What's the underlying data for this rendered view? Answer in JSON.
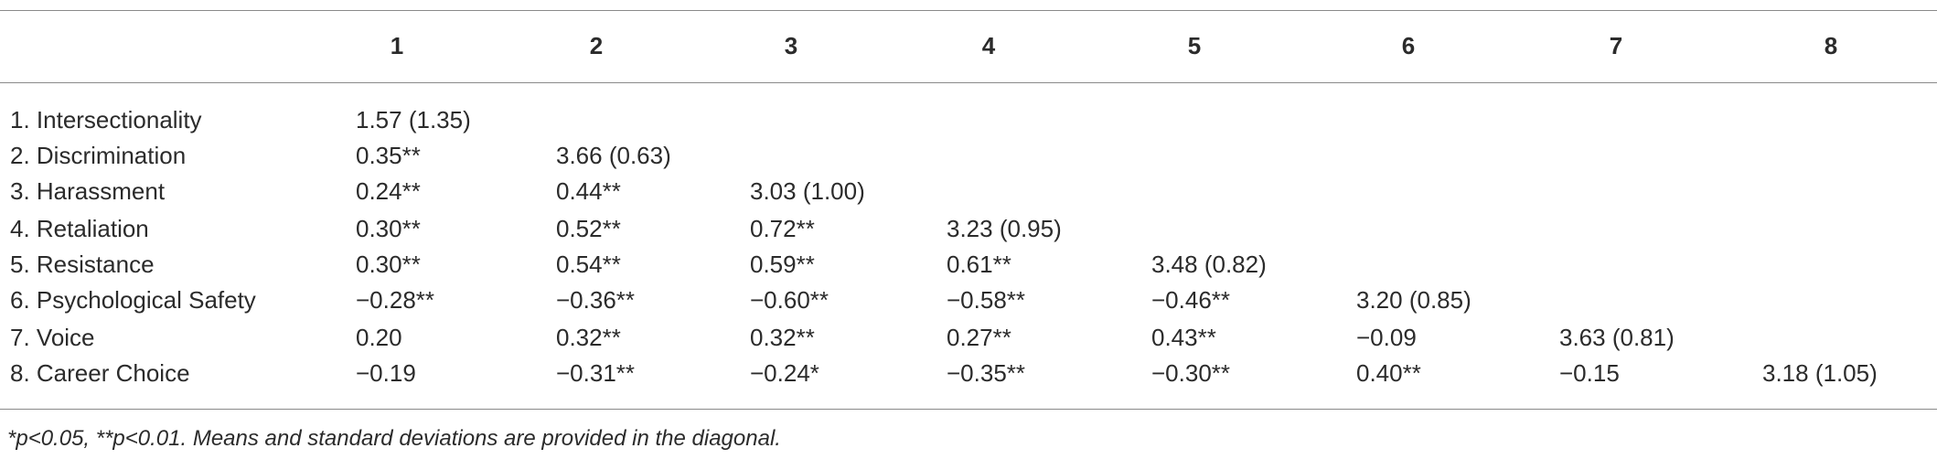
{
  "table": {
    "header": [
      "1",
      "2",
      "3",
      "4",
      "5",
      "6",
      "7",
      "8"
    ],
    "rows": [
      {
        "label": "1. Intersectionality",
        "cells": [
          "1.57 (1.35)"
        ]
      },
      {
        "label": "2. Discrimination",
        "cells": [
          "0.35**",
          "3.66 (0.63)"
        ]
      },
      {
        "label": "3. Harassment",
        "cells": [
          "0.24**",
          "0.44**",
          "3.03 (1.00)"
        ]
      },
      {
        "label": "4. Retaliation",
        "cells": [
          "0.30**",
          "0.52**",
          "0.72**",
          "3.23 (0.95)"
        ]
      },
      {
        "label": "5. Resistance",
        "cells": [
          "0.30**",
          "0.54**",
          "0.59**",
          "0.61**",
          "3.48 (0.82)"
        ]
      },
      {
        "label": "6. Psychological Safety",
        "cells": [
          "−0.28**",
          "−0.36**",
          "−0.60**",
          "−0.58**",
          "−0.46**",
          "3.20 (0.85)"
        ]
      },
      {
        "label": "7. Voice",
        "cells": [
          "0.20",
          "0.32**",
          "0.32**",
          "0.27**",
          "0.43**",
          "−0.09",
          "3.63 (0.81)"
        ]
      },
      {
        "label": "8. Career Choice",
        "cells": [
          "−0.19",
          "−0.31**",
          "−0.24*",
          "−0.35**",
          "−0.30**",
          "0.40**",
          "−0.15",
          "3.18 (1.05)"
        ]
      }
    ],
    "footnote": "*p<0.05, **p<0.01. Means and standard deviations are provided in the diagonal."
  }
}
